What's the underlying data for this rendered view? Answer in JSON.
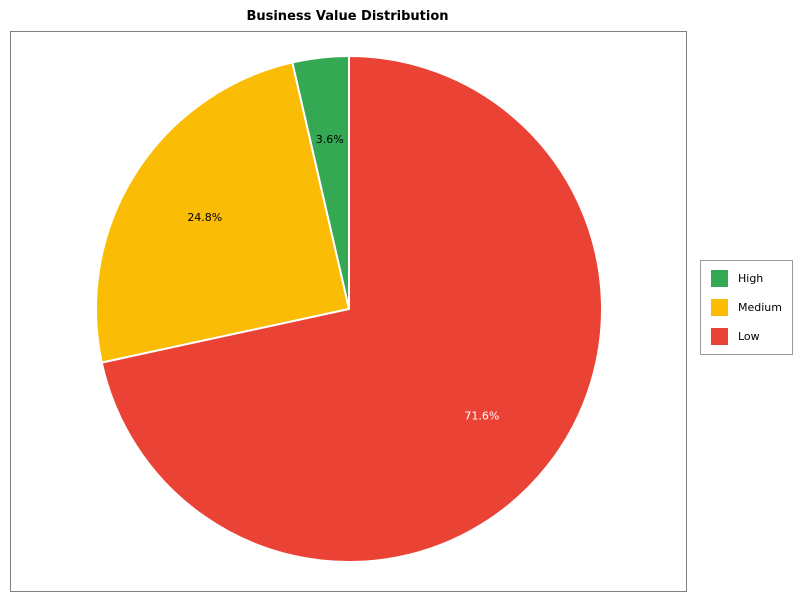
{
  "chart_data": {
    "type": "pie",
    "title": "Business Value Distribution",
    "categories": [
      "High",
      "Medium",
      "Low"
    ],
    "values": [
      3.6,
      24.8,
      71.6
    ],
    "pct_labels": [
      "3.6%",
      "24.8%",
      "71.6%"
    ],
    "pct_label_colors": [
      "#000000",
      "#000000",
      "#ffffff"
    ],
    "colors": [
      "#34a853",
      "#fbbc05",
      "#ea4335"
    ],
    "slice_edge_color": "#ffffff",
    "start_angle": 90,
    "direction": "counterclockwise",
    "legend": {
      "position": "right",
      "entries": [
        "High",
        "Medium",
        "Low"
      ]
    }
  }
}
